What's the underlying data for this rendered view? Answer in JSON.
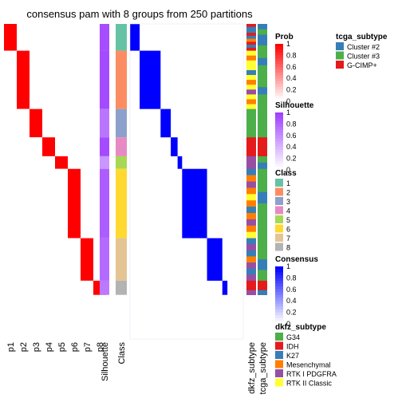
{
  "chart_data": {
    "type": "heatmap",
    "title": "consensus pam with 8 groups from 250 partitions",
    "prob_columns": [
      "p1",
      "p2",
      "p3",
      "p4",
      "p5",
      "p6",
      "p7",
      "p8"
    ],
    "annotation_columns": [
      "Silhouette",
      "Class"
    ],
    "subtype_columns": [
      "dkfz_subtype",
      "tcga_subtype"
    ],
    "classes": [
      {
        "id": "1",
        "color": "#66C2A5",
        "fraction": 0.085
      },
      {
        "id": "2",
        "color": "#FC8D62",
        "fraction": 0.185
      },
      {
        "id": "3",
        "color": "#8DA0CB",
        "fraction": 0.09
      },
      {
        "id": "4",
        "color": "#E78AC3",
        "fraction": 0.06
      },
      {
        "id": "5",
        "color": "#A6D854",
        "fraction": 0.04
      },
      {
        "id": "6",
        "color": "#FFD92F",
        "fraction": 0.22
      },
      {
        "id": "7",
        "color": "#E5C494",
        "fraction": 0.135
      },
      {
        "id": "8",
        "color": "#B3B3B3",
        "fraction": 0.045
      }
    ],
    "silhouette_by_class": [
      0.93,
      0.95,
      0.72,
      0.95,
      0.55,
      0.85,
      0.78,
      0.7
    ],
    "dkfz_by_class": [
      [
        "IDH",
        "K27",
        "K27",
        "IDH",
        "K27",
        "Mesenchymal",
        "IDH",
        "K27",
        "IDH"
      ],
      [
        "RTK II Classic",
        "Mesenchymal",
        "RTK II Classic",
        "RTK II Classic",
        "K27",
        "RTK II Classic",
        "Mesenchymal",
        "RTK II Classic",
        "RTK I PDGFRA",
        "RTK II Classic",
        "Mesenchymal",
        "RTK II Classic"
      ],
      [
        "G34",
        "G34",
        "G34",
        "G34",
        "G34"
      ],
      [
        "IDH",
        "IDH",
        "IDH"
      ],
      [
        "RTK I PDGFRA",
        "RTK I PDGFRA"
      ],
      [
        "K27",
        "Mesenchymal",
        "RTK I PDGFRA",
        "Mesenchymal",
        "RTK II Classic",
        "Mesenchymal",
        "K27",
        "Mesenchymal",
        "RTK I PDGFRA",
        "Mesenchymal",
        "RTK II Classic"
      ],
      [
        "K27",
        "RTK I PDGFRA",
        "K27",
        "Mesenchymal",
        "RTK I PDGFRA",
        "K27",
        "RTK I PDGFRA"
      ],
      [
        "IDH",
        "IDH",
        "RTK I PDGFRA"
      ]
    ],
    "tcga_by_class": [
      [
        "Cluster #2",
        "Cluster #3",
        "Cluster #2",
        "Cluster #2",
        "Cluster #3"
      ],
      [
        "Cluster #3",
        "Cluster #2",
        "Cluster #3",
        "Cluster #3",
        "Cluster #3",
        "Cluster #2",
        "Cluster #3",
        "Cluster #3"
      ],
      [
        "Cluster #3",
        "Cluster #3",
        "Cluster #3"
      ],
      [
        "G-CIMP+",
        "G-CIMP+"
      ],
      [
        "Cluster #3",
        "Cluster #2"
      ],
      [
        "Cluster #3",
        "Cluster #3",
        "Cluster #2",
        "Cluster #3",
        "Cluster #3",
        "Cluster #3"
      ],
      [
        "Cluster #3",
        "Cluster #3",
        "Cluster #2",
        "Cluster #3"
      ],
      [
        "G-CIMP+",
        "G-CIMP+",
        "Cluster #2"
      ]
    ],
    "legends": {
      "tcga_subtype": {
        "title": "tcga_subtype",
        "items": [
          {
            "label": "Cluster #2",
            "color": "#377EB8"
          },
          {
            "label": "Cluster #3",
            "color": "#4DAF4A"
          },
          {
            "label": "G-CIMP+",
            "color": "#E41A1C"
          }
        ]
      },
      "prob": {
        "title": "Prob",
        "ticks": [
          "1",
          "0.8",
          "0.6",
          "0.4",
          "0.2",
          "0"
        ],
        "colors": [
          "#FF0000",
          "#FFFFFF"
        ]
      },
      "silhouette": {
        "title": "Silhouette",
        "ticks": [
          "1",
          "0.8",
          "0.6",
          "0.4",
          "0.2",
          "0"
        ],
        "colors": [
          "#9F40FF",
          "#FFFFFF"
        ]
      },
      "class": {
        "title": "Class",
        "items": [
          {
            "label": "1",
            "color": "#66C2A5"
          },
          {
            "label": "2",
            "color": "#FC8D62"
          },
          {
            "label": "3",
            "color": "#8DA0CB"
          },
          {
            "label": "4",
            "color": "#E78AC3"
          },
          {
            "label": "5",
            "color": "#A6D854"
          },
          {
            "label": "6",
            "color": "#FFD92F"
          },
          {
            "label": "7",
            "color": "#E5C494"
          },
          {
            "label": "8",
            "color": "#B3B3B3"
          }
        ]
      },
      "consensus": {
        "title": "Consensus",
        "ticks": [
          "1",
          "0.8",
          "0.6",
          "0.4",
          "0.2",
          "0"
        ],
        "colors": [
          "#0000FF",
          "#FFFFFF"
        ]
      },
      "dkfz_subtype": {
        "title": "dkfz_subtype",
        "items": [
          {
            "label": "G34",
            "color": "#4DAF4A"
          },
          {
            "label": "IDH",
            "color": "#E41A1C"
          },
          {
            "label": "K27",
            "color": "#377EB8"
          },
          {
            "label": "Mesenchymal",
            "color": "#FF7F00"
          },
          {
            "label": "RTK I PDGFRA",
            "color": "#984EA3"
          },
          {
            "label": "RTK II Classic",
            "color": "#FFFF33"
          }
        ]
      }
    }
  }
}
